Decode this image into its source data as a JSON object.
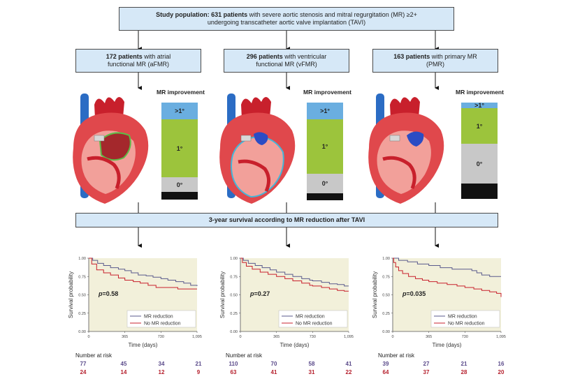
{
  "top": {
    "bold": "Study population: 631 patients",
    "rest1": " with severe aortic stenosis and mitral regurgitation (MR) ≥2+",
    "line2": "undergoing transcatheter aortic valve implantation (TAVI)"
  },
  "groups": [
    {
      "bold": "172 patients",
      "rest": " with atrial",
      "line2": "functional MR (aFMR)"
    },
    {
      "bold": "296 patients",
      "rest": " with ventricular",
      "line2": "functional MR (vFMR)"
    },
    {
      "bold": "163 patients",
      "rest": " with primary MR",
      "line2": "(PMR)"
    }
  ],
  "mr_improvement_title": "MR improvement",
  "mr_bars": [
    {
      "segments": [
        {
          "label": ">1°",
          "fraction": 0.17,
          "color": "#6aaee0"
        },
        {
          "label": "1°",
          "fraction": 0.6,
          "color": "#9cc43c"
        },
        {
          "label": "0°",
          "fraction": 0.15,
          "color": "#c8c8c8"
        },
        {
          "label": "",
          "fraction": 0.08,
          "color": "#111111"
        }
      ]
    },
    {
      "segments": [
        {
          "label": ">1°",
          "fraction": 0.17,
          "color": "#6aaee0"
        },
        {
          "label": "1°",
          "fraction": 0.56,
          "color": "#9cc43c"
        },
        {
          "label": "0°",
          "fraction": 0.2,
          "color": "#c8c8c8"
        },
        {
          "label": "",
          "fraction": 0.07,
          "color": "#111111"
        }
      ]
    },
    {
      "segments": [
        {
          "label": ">1°",
          "fraction": 0.06,
          "color": "#6aaee0"
        },
        {
          "label": "1°",
          "fraction": 0.37,
          "color": "#9cc43c"
        },
        {
          "label": "0°",
          "fraction": 0.41,
          "color": "#c8c8c8"
        },
        {
          "label": "",
          "fraction": 0.16,
          "color": "#111111"
        }
      ]
    }
  ],
  "survival_box": "3-year survival according to MR reduction after TAVI",
  "chart_data": [
    {
      "type": "line",
      "ylabel": "Survival probability",
      "xlabel": "Time (days)",
      "xlim": [
        0,
        1095
      ],
      "ylim": [
        0,
        1
      ],
      "xticks": [
        "0",
        "365",
        "730",
        "1,095"
      ],
      "yticks": [
        "0.00",
        "0.25",
        "0.50",
        "0.75",
        "1.00"
      ],
      "annotation_p": "p",
      "annotation_val": "=0.58",
      "legend": [
        "MR reduction",
        "No MR reduction"
      ],
      "series": [
        {
          "name": "MR reduction",
          "color": "#5a5a8c",
          "x": [
            0,
            40,
            90,
            150,
            220,
            300,
            365,
            430,
            500,
            580,
            650,
            730,
            800,
            880,
            960,
            1030,
            1095
          ],
          "y": [
            1.0,
            0.97,
            0.93,
            0.9,
            0.87,
            0.85,
            0.83,
            0.8,
            0.77,
            0.76,
            0.74,
            0.72,
            0.7,
            0.68,
            0.66,
            0.63,
            0.62
          ]
        },
        {
          "name": "No MR reduction",
          "color": "#c8202c",
          "x": [
            0,
            30,
            80,
            150,
            220,
            300,
            365,
            450,
            520,
            600,
            680,
            730,
            820,
            900,
            1000,
            1095
          ],
          "y": [
            1.0,
            0.92,
            0.84,
            0.8,
            0.77,
            0.73,
            0.7,
            0.68,
            0.66,
            0.63,
            0.6,
            0.6,
            0.6,
            0.58,
            0.58,
            0.58
          ]
        }
      ],
      "risk_header": "Number at risk",
      "risk_rows": [
        [
          "77",
          "45",
          "34",
          "21"
        ],
        [
          "24",
          "14",
          "12",
          "9"
        ]
      ]
    },
    {
      "type": "line",
      "ylabel": "Survival probability",
      "xlabel": "Time (days)",
      "xlim": [
        0,
        1095
      ],
      "ylim": [
        0,
        1
      ],
      "xticks": [
        "0",
        "365",
        "730",
        "1,095"
      ],
      "yticks": [
        "0.00",
        "0.25",
        "0.50",
        "0.75",
        "1.00"
      ],
      "annotation_p": "p",
      "annotation_val": "=0.27",
      "legend": [
        "MR reduction",
        "No MR reduction"
      ],
      "series": [
        {
          "name": "MR reduction",
          "color": "#5a5a8c",
          "x": [
            0,
            30,
            80,
            150,
            220,
            300,
            365,
            450,
            530,
            620,
            700,
            730,
            820,
            900,
            980,
            1050,
            1095
          ],
          "y": [
            1.0,
            0.97,
            0.93,
            0.9,
            0.87,
            0.84,
            0.81,
            0.78,
            0.75,
            0.72,
            0.7,
            0.69,
            0.67,
            0.65,
            0.64,
            0.62,
            0.62
          ]
        },
        {
          "name": "No MR reduction",
          "color": "#c8202c",
          "x": [
            0,
            20,
            60,
            120,
            200,
            280,
            365,
            450,
            530,
            620,
            700,
            730,
            820,
            900,
            980,
            1050,
            1095
          ],
          "y": [
            1.0,
            0.94,
            0.89,
            0.85,
            0.81,
            0.78,
            0.75,
            0.72,
            0.69,
            0.66,
            0.63,
            0.62,
            0.6,
            0.58,
            0.56,
            0.55,
            0.55
          ]
        }
      ],
      "risk_header": "Number at risk",
      "risk_rows": [
        [
          "110",
          "70",
          "58",
          "41"
        ],
        [
          "63",
          "41",
          "31",
          "22"
        ]
      ]
    },
    {
      "type": "line",
      "ylabel": "Survival probability",
      "xlabel": "Time (days)",
      "xlim": [
        0,
        1095
      ],
      "ylim": [
        0,
        1
      ],
      "xticks": [
        "0",
        "365",
        "730",
        "1,095"
      ],
      "yticks": [
        "0.00",
        "0.25",
        "0.50",
        "0.75",
        "1.00"
      ],
      "annotation_p": "p",
      "annotation_val": "=0.035",
      "legend": [
        "MR reduction",
        "No MR reduction"
      ],
      "series": [
        {
          "name": "MR reduction",
          "color": "#5a5a8c",
          "x": [
            0,
            60,
            150,
            250,
            365,
            480,
            600,
            730,
            800,
            850,
            900,
            980,
            1095
          ],
          "y": [
            1.0,
            0.97,
            0.95,
            0.92,
            0.9,
            0.87,
            0.85,
            0.85,
            0.83,
            0.8,
            0.77,
            0.75,
            0.75
          ]
        },
        {
          "name": "No MR reduction",
          "color": "#c8202c",
          "x": [
            0,
            10,
            30,
            60,
            100,
            160,
            230,
            300,
            365,
            450,
            550,
            650,
            730,
            820,
            900,
            980,
            1050,
            1095
          ],
          "y": [
            1.0,
            0.94,
            0.88,
            0.83,
            0.79,
            0.75,
            0.72,
            0.7,
            0.68,
            0.66,
            0.64,
            0.62,
            0.6,
            0.58,
            0.56,
            0.54,
            0.52,
            0.47
          ]
        }
      ],
      "risk_header": "Number at risk",
      "risk_rows": [
        [
          "39",
          "27",
          "21",
          "16"
        ],
        [
          "64",
          "37",
          "28",
          "20"
        ]
      ]
    }
  ]
}
